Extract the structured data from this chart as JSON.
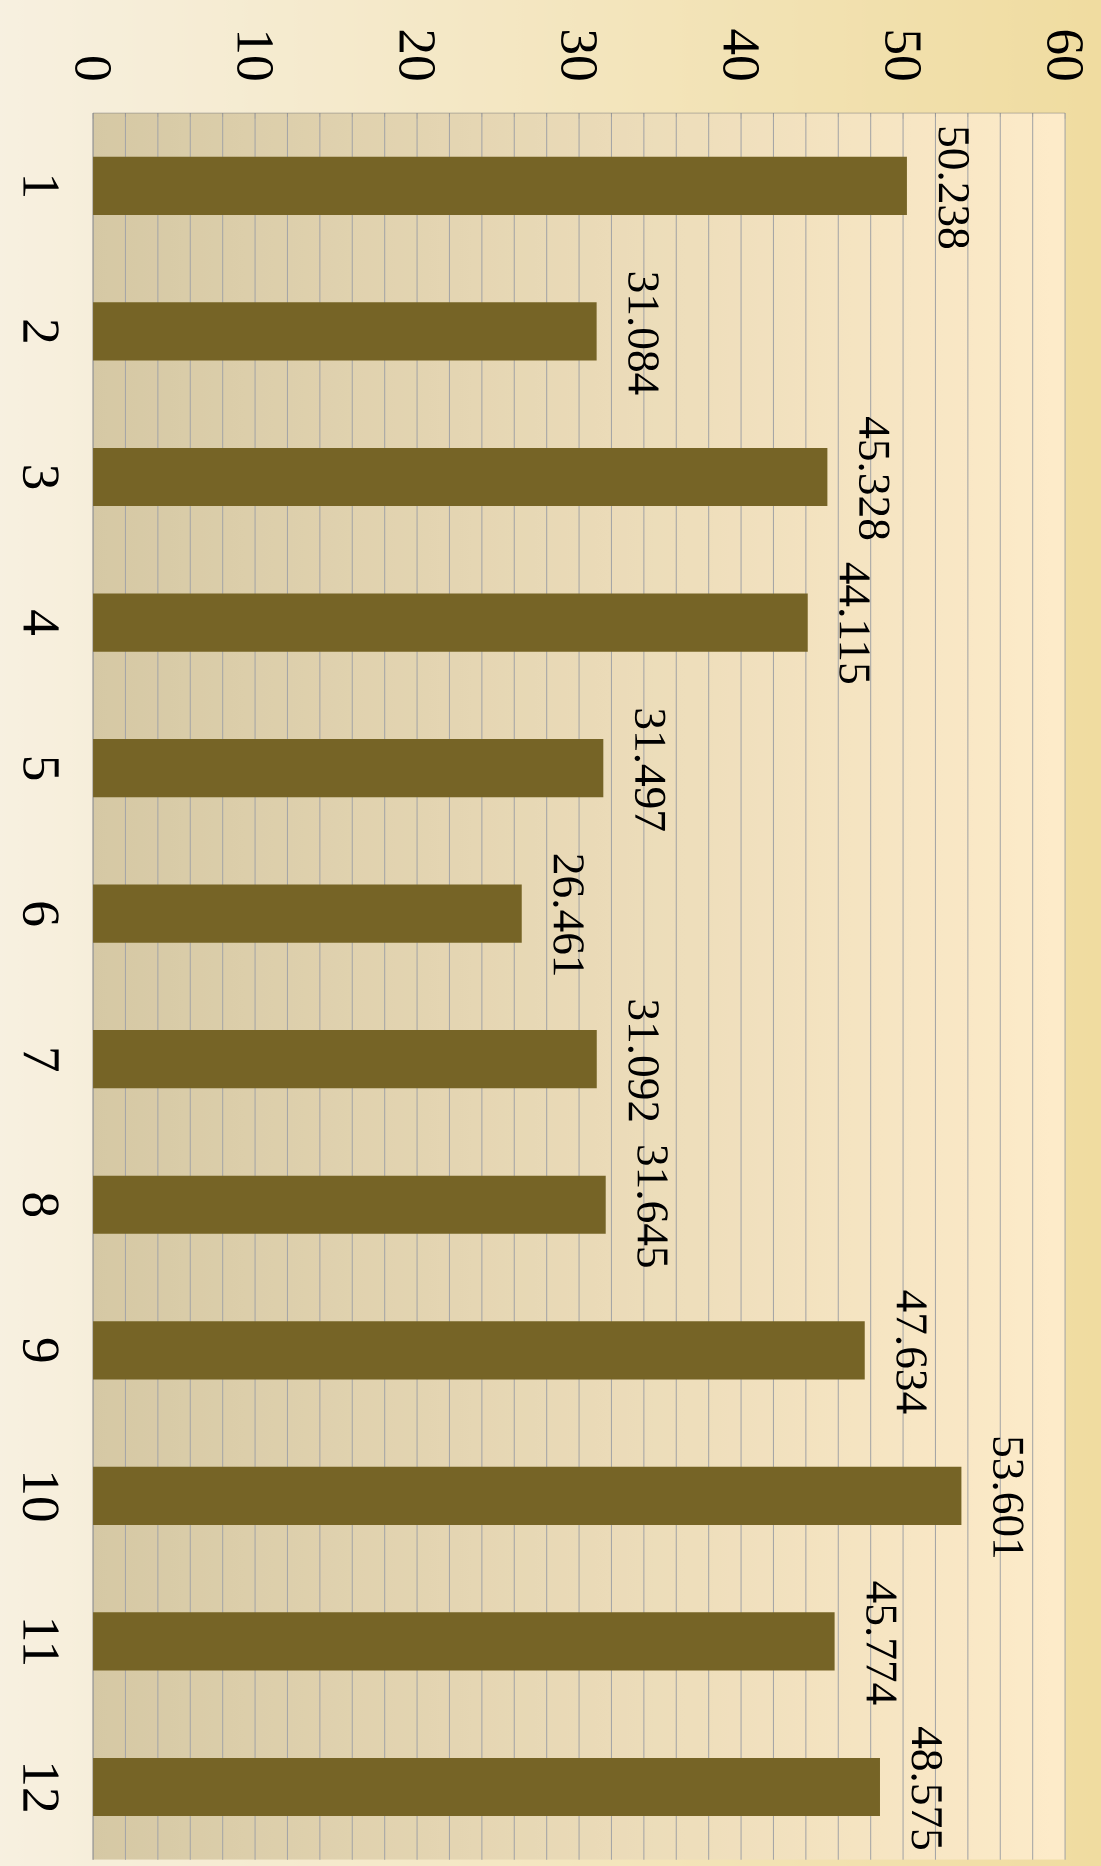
{
  "chart_data": {
    "type": "bar",
    "orientation": "horizontal",
    "categories": [
      "1",
      "2",
      "3",
      "4",
      "5",
      "6",
      "7",
      "8",
      "9",
      "10",
      "11",
      "12"
    ],
    "values": [
      50.238,
      31.084,
      45.328,
      44.115,
      31.497,
      26.461,
      31.092,
      31.645,
      47.634,
      53.601,
      45.774,
      48.575
    ],
    "color": "#766426",
    "xlim": [
      0,
      60
    ],
    "xticks": [
      0,
      10,
      20,
      30,
      40,
      50,
      60
    ],
    "grid": "x",
    "data_labels": true
  }
}
